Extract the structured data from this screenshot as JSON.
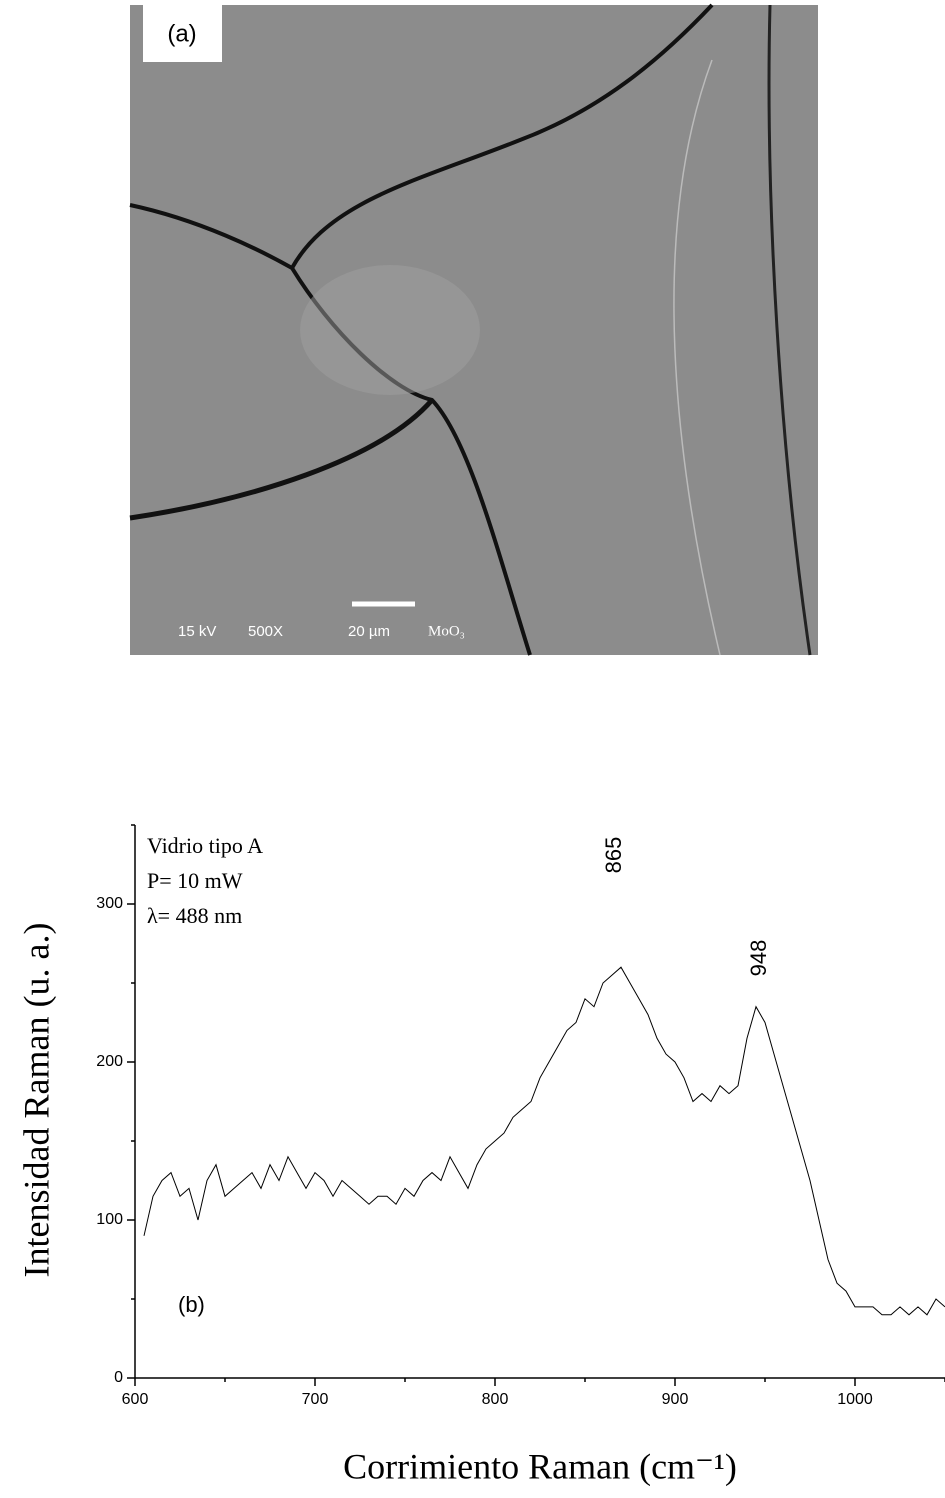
{
  "image": {
    "panel_label": "(a)",
    "voltage": "15 kV",
    "magnification": "500X",
    "scale": "20 µm",
    "sample": "MoO₃"
  },
  "chart_data": {
    "type": "line",
    "x_label": "Corrimiento Raman (cm⁻¹)",
    "y_label": "Intensidad Raman (u. a.)",
    "annotations": [
      "Vidrio tipo A",
      "P= 10 mW",
      "λ= 488 nm",
      "865",
      "948",
      "(b)"
    ],
    "xlim": [
      600,
      1050
    ],
    "xticks": [
      600,
      700,
      800,
      900,
      1000
    ],
    "xminorticks": [
      650,
      750,
      850,
      950,
      1050
    ],
    "ylim": [
      0,
      350
    ],
    "yticks": [
      0,
      100,
      200,
      300
    ],
    "yminorticks": [
      50,
      150,
      250,
      350
    ],
    "x": [
      605,
      610,
      615,
      620,
      625,
      630,
      635,
      640,
      645,
      650,
      655,
      660,
      665,
      670,
      675,
      680,
      685,
      690,
      695,
      700,
      705,
      710,
      715,
      720,
      725,
      730,
      735,
      740,
      745,
      750,
      755,
      760,
      765,
      770,
      775,
      780,
      785,
      790,
      795,
      800,
      805,
      810,
      815,
      820,
      825,
      830,
      835,
      840,
      845,
      850,
      855,
      860,
      865,
      870,
      875,
      880,
      885,
      890,
      895,
      900,
      905,
      910,
      915,
      920,
      925,
      930,
      935,
      940,
      945,
      950,
      955,
      960,
      965,
      970,
      975,
      980,
      985,
      990,
      995,
      1000,
      1005,
      1010,
      1015,
      1020,
      1025,
      1030,
      1035,
      1040,
      1045,
      1050
    ],
    "series": [
      {
        "color": "#000000",
        "values": [
          90,
          115,
          125,
          130,
          115,
          120,
          100,
          125,
          135,
          115,
          120,
          125,
          130,
          120,
          135,
          125,
          140,
          130,
          120,
          130,
          125,
          115,
          125,
          120,
          115,
          110,
          115,
          115,
          110,
          120,
          115,
          125,
          130,
          125,
          140,
          130,
          120,
          135,
          145,
          150,
          155,
          165,
          170,
          175,
          190,
          200,
          210,
          220,
          225,
          240,
          235,
          250,
          255,
          260,
          250,
          240,
          230,
          215,
          205,
          200,
          190,
          175,
          180,
          175,
          185,
          180,
          185,
          215,
          235,
          225,
          205,
          185,
          165,
          145,
          125,
          100,
          75,
          60,
          55,
          45,
          45,
          45,
          40,
          40,
          45,
          40,
          45,
          40,
          50,
          45
        ]
      }
    ]
  }
}
